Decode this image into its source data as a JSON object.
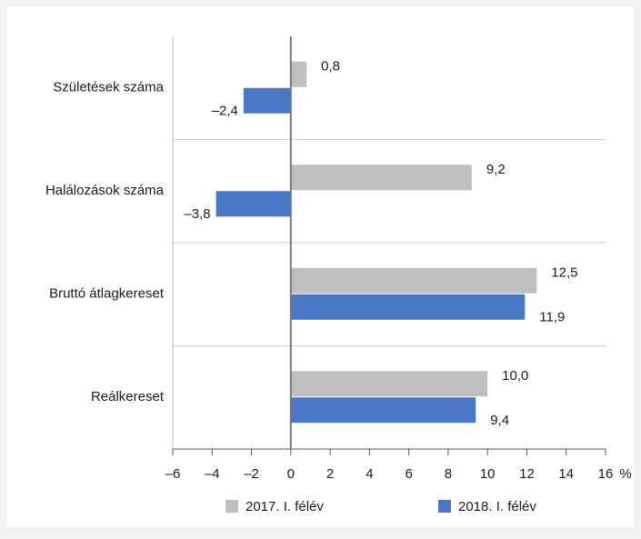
{
  "chart_data": {
    "type": "barh",
    "categories": [
      "Születések száma",
      "Halálozások száma",
      "Bruttó átlagkereset",
      "Reálkereset"
    ],
    "series": [
      {
        "name": "2017. I. félév",
        "color": "#bfbfc1",
        "values": [
          0.8,
          9.2,
          12.5,
          10.0
        ],
        "value_labels": [
          "0,8",
          "9,2",
          "12,5",
          "10,0"
        ]
      },
      {
        "name": "2018. I. félév",
        "color": "#4a78c6",
        "values": [
          -2.4,
          -3.8,
          11.9,
          9.4
        ],
        "value_labels": [
          "–2,4",
          "–3,8",
          "11,9",
          "9,4"
        ]
      }
    ],
    "xlim": [
      -6,
      16
    ],
    "xticks": [
      {
        "value": -6,
        "label": "–6"
      },
      {
        "value": -4,
        "label": "–4"
      },
      {
        "value": -2,
        "label": "–2"
      },
      0,
      2,
      4,
      6,
      8,
      10,
      12,
      14,
      16
    ],
    "x_unit": "%",
    "legend": "bottom"
  }
}
